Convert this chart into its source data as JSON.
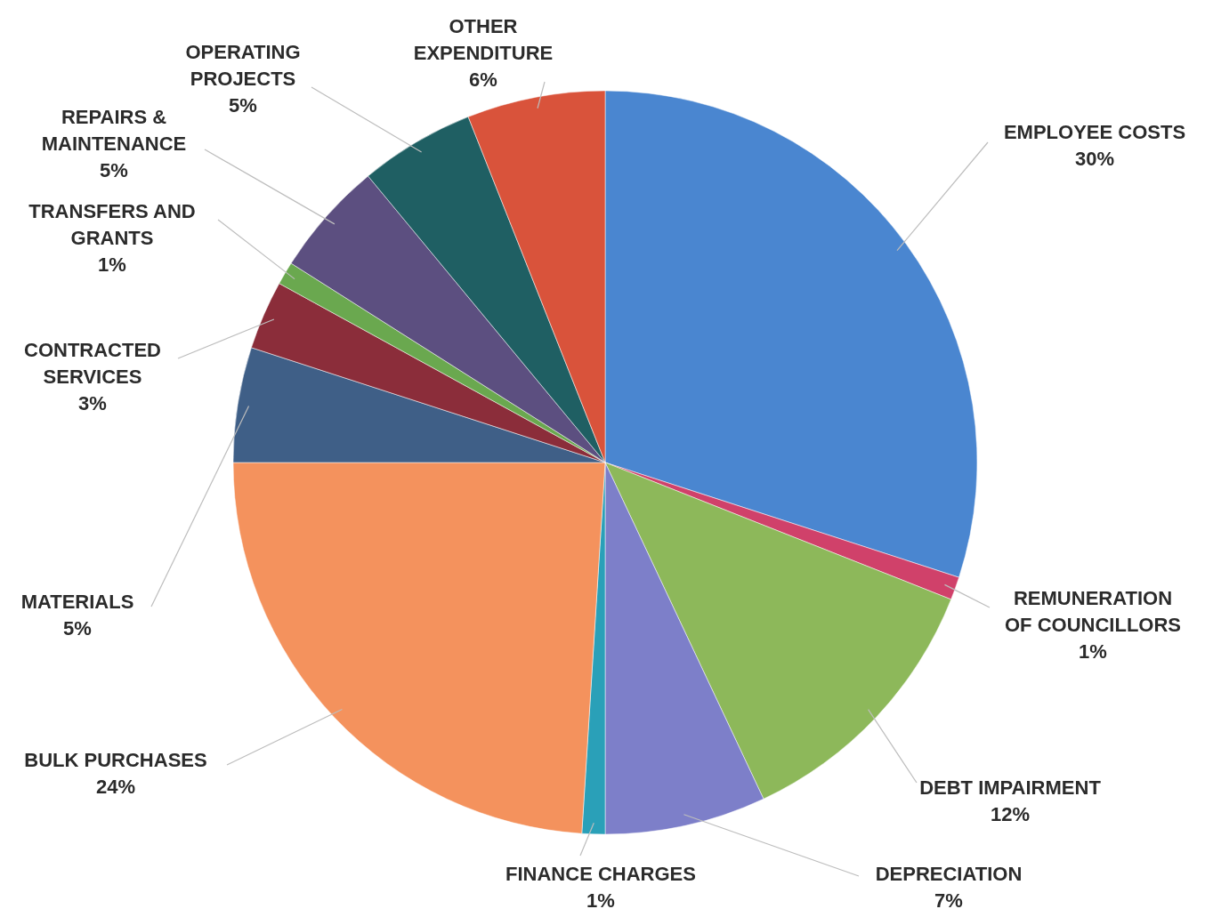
{
  "chart_data": {
    "type": "pie",
    "categories": [
      "EMPLOYEE COSTS",
      "REMUNERATION OF COUNCILLORS",
      "DEBT IMPAIRMENT",
      "DEPRECIATION",
      "FINANCE CHARGES",
      "BULK PURCHASES",
      "MATERIALS",
      "CONTRACTED SERVICES",
      "TRANSFERS AND GRANTS",
      "REPAIRS & MAINTENANCE",
      "OPERATING PROJECTS",
      "OTHER EXPENDITURE"
    ],
    "values": [
      30,
      1,
      12,
      7,
      1,
      24,
      5,
      3,
      1,
      5,
      5,
      6
    ],
    "value_labels": [
      "30%",
      "1%",
      "12%",
      "7%",
      "1%",
      "24%",
      "5%",
      "3%",
      "1%",
      "5%",
      "5%",
      "6%"
    ],
    "colors": [
      "#4a86d0",
      "#d0416a",
      "#8db85a",
      "#7d7fc9",
      "#2aa0b8",
      "#f4925d",
      "#3f5f87",
      "#8b2d3a",
      "#6aa84f",
      "#5c4f80",
      "#1f5f63",
      "#d9533b"
    ]
  }
}
